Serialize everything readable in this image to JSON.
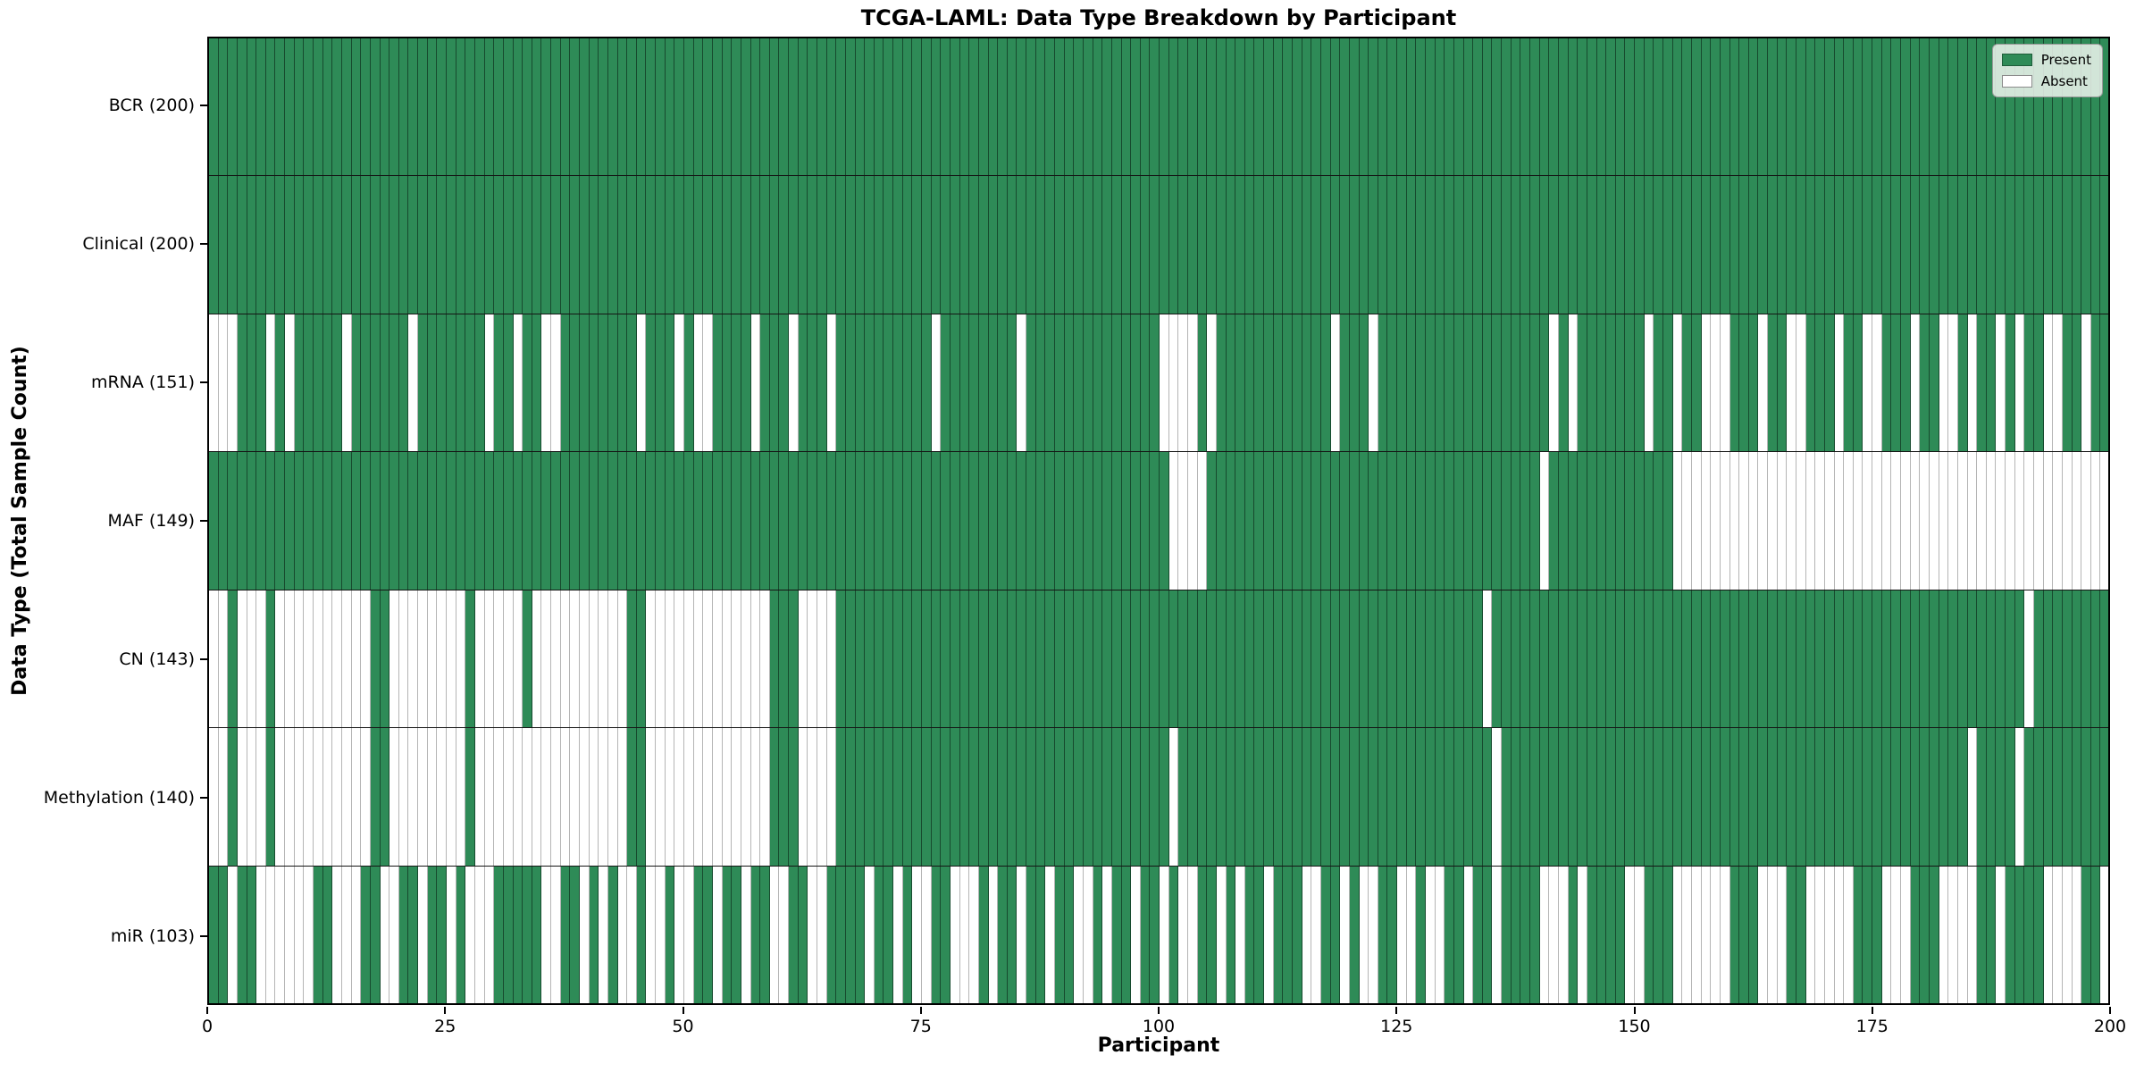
{
  "title": "TCGA-LAML: Data Type Breakdown by Participant",
  "chart_data": {
    "type": "heatmap",
    "title": "TCGA-LAML: Data Type Breakdown by Participant",
    "xlabel": "Participant",
    "ylabel": "Data Type (Total Sample Count)",
    "x_ticks": [
      0,
      25,
      50,
      75,
      100,
      125,
      150,
      175,
      200
    ],
    "n_participants": 200,
    "x_range": [
      0,
      200
    ],
    "grid": false,
    "legend_position": "upper right",
    "legend": [
      {
        "label": "Present",
        "color": "#2e8b57"
      },
      {
        "label": "Absent",
        "color": "#ffffff"
      }
    ],
    "rows": [
      {
        "label": "BCR (200)",
        "data_type": "BCR",
        "total_count": 200,
        "present_runs": [
          [
            0,
            199
          ]
        ]
      },
      {
        "label": "Clinical (200)",
        "data_type": "Clinical",
        "total_count": 200,
        "present_runs": [
          [
            0,
            199
          ]
        ]
      },
      {
        "label": "mRNA (151)",
        "data_type": "mRNA",
        "total_count": 151,
        "present_runs": [
          [
            3,
            5
          ],
          [
            7,
            7
          ],
          [
            9,
            13
          ],
          [
            15,
            20
          ],
          [
            22,
            28
          ],
          [
            30,
            31
          ],
          [
            33,
            34
          ],
          [
            37,
            44
          ],
          [
            46,
            48
          ],
          [
            50,
            50
          ],
          [
            53,
            56
          ],
          [
            58,
            60
          ],
          [
            62,
            64
          ],
          [
            66,
            75
          ],
          [
            77,
            84
          ],
          [
            86,
            99
          ],
          [
            104,
            104
          ],
          [
            106,
            117
          ],
          [
            119,
            121
          ],
          [
            123,
            140
          ],
          [
            142,
            142
          ],
          [
            144,
            150
          ],
          [
            152,
            153
          ],
          [
            155,
            156
          ],
          [
            160,
            162
          ],
          [
            164,
            165
          ],
          [
            168,
            170
          ],
          [
            172,
            173
          ],
          [
            176,
            178
          ],
          [
            180,
            181
          ],
          [
            184,
            184
          ],
          [
            186,
            187
          ],
          [
            189,
            189
          ],
          [
            191,
            192
          ],
          [
            195,
            196
          ],
          [
            198,
            199
          ]
        ]
      },
      {
        "label": "MAF (149)",
        "data_type": "MAF",
        "total_count": 149,
        "present_runs": [
          [
            0,
            100
          ],
          [
            105,
            139
          ],
          [
            141,
            153
          ]
        ]
      },
      {
        "label": "CN (143)",
        "data_type": "CN",
        "total_count": 143,
        "present_runs": [
          [
            2,
            2
          ],
          [
            6,
            6
          ],
          [
            17,
            18
          ],
          [
            27,
            27
          ],
          [
            33,
            33
          ],
          [
            44,
            45
          ],
          [
            59,
            61
          ],
          [
            66,
            133
          ],
          [
            135,
            190
          ],
          [
            192,
            199
          ]
        ]
      },
      {
        "label": "Methylation (140)",
        "data_type": "Methylation",
        "total_count": 140,
        "present_runs": [
          [
            2,
            2
          ],
          [
            6,
            6
          ],
          [
            17,
            18
          ],
          [
            27,
            27
          ],
          [
            44,
            45
          ],
          [
            59,
            61
          ],
          [
            66,
            100
          ],
          [
            102,
            134
          ],
          [
            136,
            184
          ],
          [
            186,
            189
          ],
          [
            191,
            199
          ]
        ]
      },
      {
        "label": "miR (103)",
        "data_type": "miR",
        "total_count": 103,
        "present_runs": [
          [
            0,
            1
          ],
          [
            3,
            4
          ],
          [
            11,
            12
          ],
          [
            16,
            17
          ],
          [
            20,
            21
          ],
          [
            23,
            24
          ],
          [
            26,
            26
          ],
          [
            30,
            34
          ],
          [
            37,
            38
          ],
          [
            40,
            40
          ],
          [
            42,
            42
          ],
          [
            45,
            45
          ],
          [
            48,
            48
          ],
          [
            51,
            52
          ],
          [
            54,
            55
          ],
          [
            57,
            58
          ],
          [
            61,
            62
          ],
          [
            65,
            68
          ],
          [
            70,
            71
          ],
          [
            73,
            73
          ],
          [
            76,
            77
          ],
          [
            81,
            81
          ],
          [
            83,
            84
          ],
          [
            86,
            87
          ],
          [
            89,
            90
          ],
          [
            93,
            93
          ],
          [
            95,
            96
          ],
          [
            98,
            99
          ],
          [
            101,
            101
          ],
          [
            104,
            105
          ],
          [
            107,
            107
          ],
          [
            109,
            110
          ],
          [
            112,
            114
          ],
          [
            117,
            118
          ],
          [
            120,
            120
          ],
          [
            123,
            124
          ],
          [
            127,
            127
          ],
          [
            130,
            131
          ],
          [
            133,
            134
          ],
          [
            136,
            139
          ],
          [
            143,
            143
          ],
          [
            145,
            148
          ],
          [
            151,
            153
          ],
          [
            160,
            162
          ],
          [
            166,
            167
          ],
          [
            173,
            175
          ],
          [
            179,
            181
          ],
          [
            186,
            187
          ],
          [
            189,
            192
          ],
          [
            197,
            198
          ]
        ]
      }
    ]
  },
  "colors": {
    "present": "#2e8b57",
    "absent": "#ffffff",
    "axis": "#000000",
    "cell_edge_present": "rgba(10,40,25,0.65)",
    "cell_edge_absent": "rgba(120,120,120,0.55)",
    "legend_bg": "rgba(238,244,238,0.85)"
  }
}
